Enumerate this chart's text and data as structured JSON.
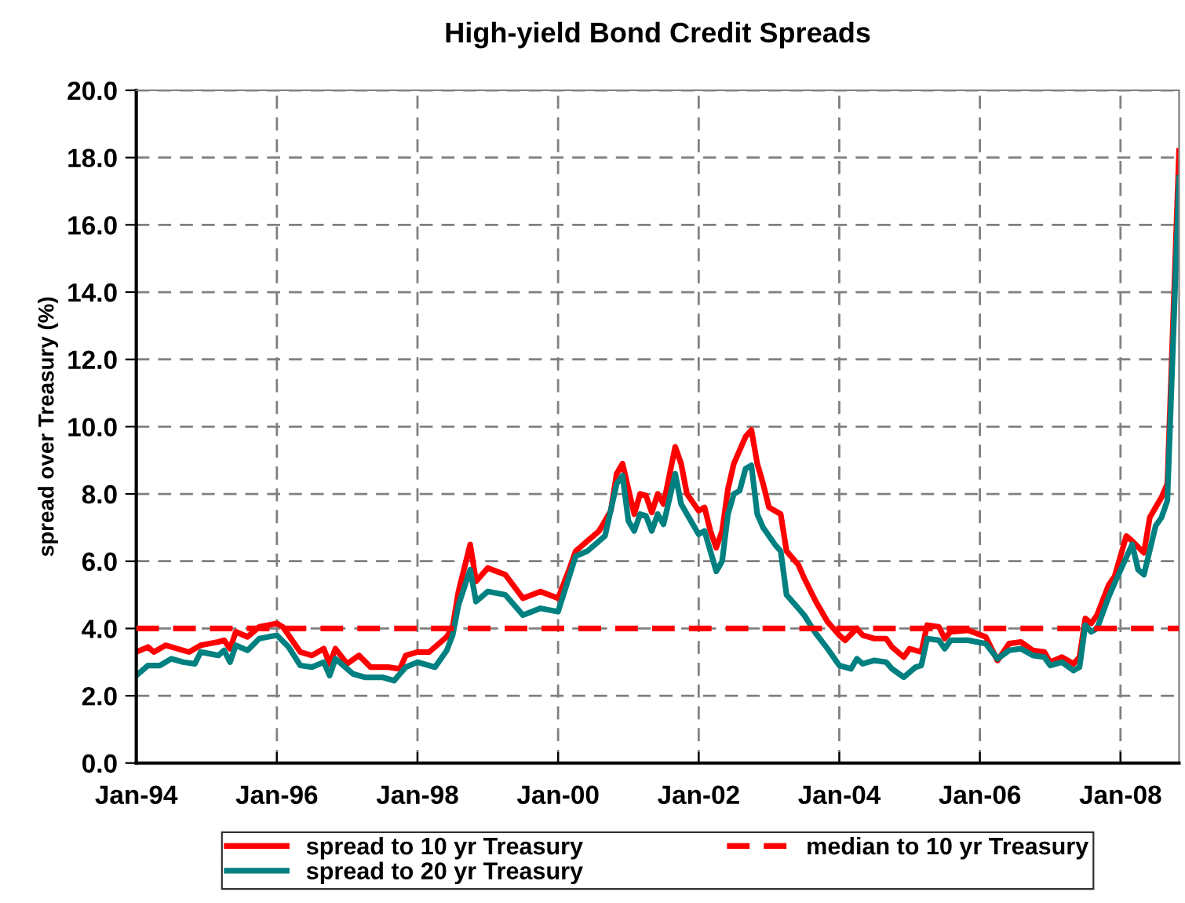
{
  "chart_data": {
    "type": "line",
    "title": "High-yield Bond Credit Spreads",
    "ylabel": "spread over Treasury (%)",
    "xlim": [
      "1994-01",
      "2008-11"
    ],
    "xticks": [
      {
        "value": "1994-01",
        "label": "Jan-94"
      },
      {
        "value": "1996-01",
        "label": "Jan-96"
      },
      {
        "value": "1998-01",
        "label": "Jan-98"
      },
      {
        "value": "2000-01",
        "label": "Jan-00"
      },
      {
        "value": "2002-01",
        "label": "Jan-02"
      },
      {
        "value": "2004-01",
        "label": "Jan-04"
      },
      {
        "value": "2006-01",
        "label": "Jan-06"
      },
      {
        "value": "2008-01",
        "label": "Jan-08"
      }
    ],
    "ylim": [
      0,
      20
    ],
    "yticks": [
      {
        "value": 0,
        "label": "0.0"
      },
      {
        "value": 2,
        "label": "2.0"
      },
      {
        "value": 4,
        "label": "4.0"
      },
      {
        "value": 6,
        "label": "6.0"
      },
      {
        "value": 8,
        "label": "8.0"
      },
      {
        "value": 10,
        "label": "10.0"
      },
      {
        "value": 12,
        "label": "12.0"
      },
      {
        "value": 14,
        "label": "14.0"
      },
      {
        "value": 16,
        "label": "16.0"
      },
      {
        "value": 18,
        "label": "18.0"
      },
      {
        "value": 20,
        "label": "20.0"
      }
    ],
    "grid": true,
    "legend": "bottom",
    "line_style": "solid",
    "marker": "none",
    "ref_lines": [
      {
        "axis": "y",
        "value": 4.0,
        "label": "median to 10 yr Treasury",
        "color": "#ff0000",
        "line_style": "dashed"
      }
    ],
    "series": [
      {
        "name": "spread to 10 yr Treasury",
        "color": "#ff0000",
        "x": [
          "1994-01",
          "1994-03",
          "1994-04",
          "1994-06",
          "1994-08",
          "1994-10",
          "1994-12",
          "1995-03",
          "1995-04",
          "1995-05",
          "1995-06",
          "1995-08",
          "1995-10",
          "1996-01",
          "1996-02",
          "1996-05",
          "1996-07",
          "1996-09",
          "1996-10",
          "1996-11",
          "1997-01",
          "1997-03",
          "1997-05",
          "1997-08",
          "1997-10",
          "1997-11",
          "1998-01",
          "1998-03",
          "1998-06",
          "1998-07",
          "1998-08",
          "1998-10",
          "1998-11",
          "1999-01",
          "1999-04",
          "1999-07",
          "1999-10",
          "2000-01",
          "2000-03",
          "2000-04",
          "2000-06",
          "2000-08",
          "2000-10",
          "2000-11",
          "2000-12",
          "2001-02",
          "2001-03",
          "2001-04",
          "2001-05",
          "2001-06",
          "2001-07",
          "2001-09",
          "2001-10",
          "2001-11",
          "2002-01",
          "2002-02",
          "2002-03",
          "2002-04",
          "2002-05",
          "2002-06",
          "2002-07",
          "2002-09",
          "2002-10",
          "2002-11",
          "2002-12",
          "2003-01",
          "2003-03",
          "2003-04",
          "2003-06",
          "2003-07",
          "2003-09",
          "2003-11",
          "2004-01",
          "2004-02",
          "2004-04",
          "2004-05",
          "2004-07",
          "2004-09",
          "2004-10",
          "2004-12",
          "2005-01",
          "2005-03",
          "2005-04",
          "2005-06",
          "2005-07",
          "2005-08",
          "2005-11",
          "2006-02",
          "2006-04",
          "2006-06",
          "2006-08",
          "2006-10",
          "2006-12",
          "2007-01",
          "2007-03",
          "2007-05",
          "2007-06",
          "2007-07",
          "2007-08",
          "2007-09",
          "2007-11",
          "2007-12",
          "2008-02",
          "2008-03",
          "2008-05",
          "2008-06",
          "2008-07",
          "2008-08",
          "2008-09",
          "2008-11"
        ],
        "values": [
          3.3,
          3.45,
          3.3,
          3.5,
          3.4,
          3.3,
          3.5,
          3.6,
          3.65,
          3.4,
          3.9,
          3.75,
          4.05,
          4.15,
          4.05,
          3.3,
          3.2,
          3.4,
          2.95,
          3.4,
          2.95,
          3.2,
          2.85,
          2.85,
          2.8,
          3.2,
          3.3,
          3.3,
          3.75,
          4.05,
          5.1,
          6.5,
          5.4,
          5.8,
          5.6,
          4.9,
          5.1,
          4.9,
          5.8,
          6.3,
          6.6,
          6.9,
          7.5,
          8.6,
          8.9,
          7.4,
          8.0,
          7.95,
          7.45,
          8.0,
          7.7,
          9.4,
          8.9,
          8.0,
          7.5,
          7.6,
          6.9,
          6.4,
          6.9,
          8.15,
          8.9,
          9.7,
          9.9,
          8.9,
          8.3,
          7.6,
          7.4,
          6.3,
          5.9,
          5.5,
          4.8,
          4.2,
          3.8,
          3.65,
          4.0,
          3.8,
          3.7,
          3.7,
          3.45,
          3.15,
          3.4,
          3.3,
          4.1,
          4.05,
          3.7,
          3.9,
          3.95,
          3.75,
          3.05,
          3.55,
          3.6,
          3.35,
          3.3,
          3.0,
          3.15,
          2.95,
          3.15,
          4.3,
          4.15,
          4.4,
          5.3,
          5.55,
          6.75,
          6.6,
          6.25,
          7.3,
          7.6,
          7.9,
          8.3,
          18.2
        ]
      },
      {
        "name": "spread to 20 yr Treasury",
        "color": "#008080",
        "x": [
          "1994-01",
          "1994-03",
          "1994-05",
          "1994-07",
          "1994-09",
          "1994-11",
          "1994-12",
          "1995-03",
          "1995-04",
          "1995-05",
          "1995-06",
          "1995-08",
          "1995-10",
          "1996-01",
          "1996-03",
          "1996-05",
          "1996-07",
          "1996-09",
          "1996-10",
          "1996-11",
          "1997-02",
          "1997-04",
          "1997-07",
          "1997-09",
          "1997-11",
          "1998-01",
          "1998-04",
          "1998-06",
          "1998-07",
          "1998-08",
          "1998-10",
          "1998-11",
          "1999-01",
          "1999-04",
          "1999-07",
          "1999-10",
          "2000-01",
          "2000-03",
          "2000-04",
          "2000-06",
          "2000-09",
          "2000-11",
          "2000-12",
          "2001-01",
          "2001-02",
          "2001-03",
          "2001-04",
          "2001-05",
          "2001-06",
          "2001-07",
          "2001-09",
          "2001-10",
          "2001-12",
          "2002-01",
          "2002-02",
          "2002-03",
          "2002-04",
          "2002-05",
          "2002-06",
          "2002-07",
          "2002-08",
          "2002-09",
          "2002-10",
          "2002-11",
          "2002-12",
          "2003-02",
          "2003-03",
          "2003-04",
          "2003-05",
          "2003-07",
          "2003-09",
          "2003-11",
          "2004-01",
          "2004-03",
          "2004-04",
          "2004-05",
          "2004-07",
          "2004-09",
          "2004-10",
          "2004-12",
          "2005-02",
          "2005-03",
          "2005-04",
          "2005-06",
          "2005-07",
          "2005-08",
          "2005-11",
          "2006-02",
          "2006-04",
          "2006-06",
          "2006-08",
          "2006-10",
          "2006-12",
          "2007-01",
          "2007-03",
          "2007-05",
          "2007-06",
          "2007-07",
          "2007-08",
          "2007-09",
          "2007-11",
          "2007-12",
          "2008-03",
          "2008-04",
          "2008-05",
          "2008-07",
          "2008-08",
          "2008-09",
          "2008-11"
        ],
        "values": [
          2.6,
          2.9,
          2.9,
          3.1,
          3.0,
          2.95,
          3.3,
          3.2,
          3.35,
          3.0,
          3.5,
          3.35,
          3.7,
          3.8,
          3.45,
          2.9,
          2.85,
          3.0,
          2.6,
          3.1,
          2.65,
          2.55,
          2.55,
          2.45,
          2.85,
          3.0,
          2.85,
          3.35,
          3.8,
          4.7,
          5.75,
          4.8,
          5.1,
          5.0,
          4.4,
          4.6,
          4.5,
          5.6,
          6.15,
          6.3,
          6.75,
          8.3,
          8.55,
          7.2,
          6.9,
          7.4,
          7.35,
          6.9,
          7.4,
          7.1,
          8.6,
          7.7,
          7.1,
          6.8,
          6.9,
          6.3,
          5.7,
          6.0,
          7.4,
          8.0,
          8.1,
          8.75,
          8.85,
          7.4,
          7.0,
          6.5,
          6.3,
          5.0,
          4.8,
          4.4,
          3.85,
          3.4,
          2.9,
          2.8,
          3.1,
          2.95,
          3.05,
          3.0,
          2.8,
          2.55,
          2.85,
          2.9,
          3.7,
          3.65,
          3.4,
          3.65,
          3.65,
          3.55,
          3.1,
          3.35,
          3.4,
          3.2,
          3.15,
          2.9,
          3.0,
          2.75,
          2.85,
          4.1,
          3.9,
          4.0,
          4.95,
          5.35,
          6.5,
          5.75,
          5.6,
          7.05,
          7.3,
          7.8,
          17.4
        ]
      }
    ]
  }
}
